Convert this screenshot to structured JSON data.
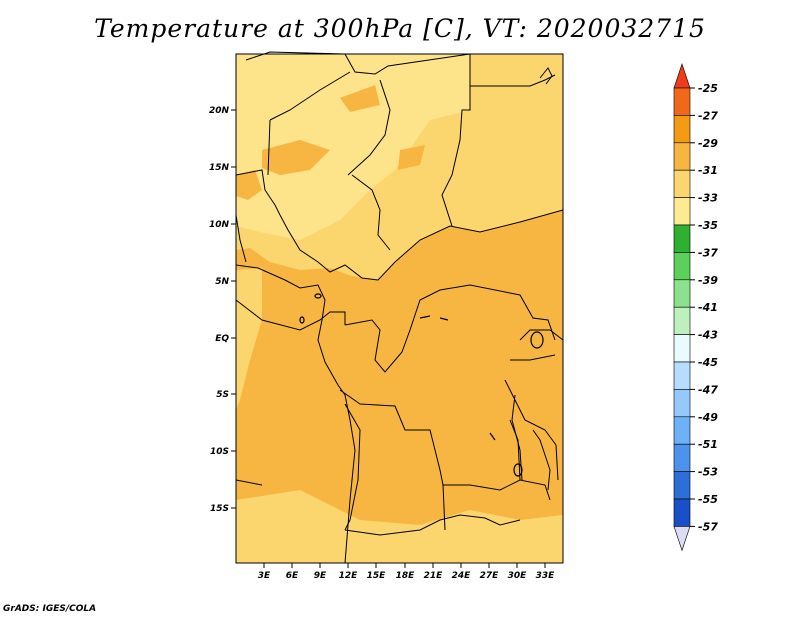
{
  "title": "Temperature at 300hPa [C], VT: 2020032715",
  "credit": "GrADS: IGES/COLA",
  "map": {
    "lat_labels": [
      "20N",
      "15N",
      "10N",
      "5N",
      "EQ",
      "5S",
      "10S",
      "15S"
    ],
    "lon_labels": [
      "3E",
      "6E",
      "9E",
      "12E",
      "15E",
      "18E",
      "21E",
      "24E",
      "27E",
      "30E",
      "33E"
    ]
  },
  "colorbar": {
    "labels": [
      "-25",
      "-27",
      "-29",
      "-31",
      "-33",
      "-35",
      "-37",
      "-39",
      "-41",
      "-43",
      "-45",
      "-47",
      "-49",
      "-51",
      "-53",
      "-55",
      "-57"
    ],
    "colors": [
      "#f03c19",
      "#f0691a",
      "#f39c13",
      "#f7b642",
      "#fbd66e",
      "#fdeb94",
      "#30b030",
      "#5ccf5c",
      "#8de08d",
      "#bdf0bd",
      "#e8fbff",
      "#b6ddff",
      "#96c8fa",
      "#6fb1f7",
      "#4d93ec",
      "#2e6ed9",
      "#1a4fc7",
      "#0f2fa3",
      "#101070",
      "#dcdcf5"
    ]
  }
}
